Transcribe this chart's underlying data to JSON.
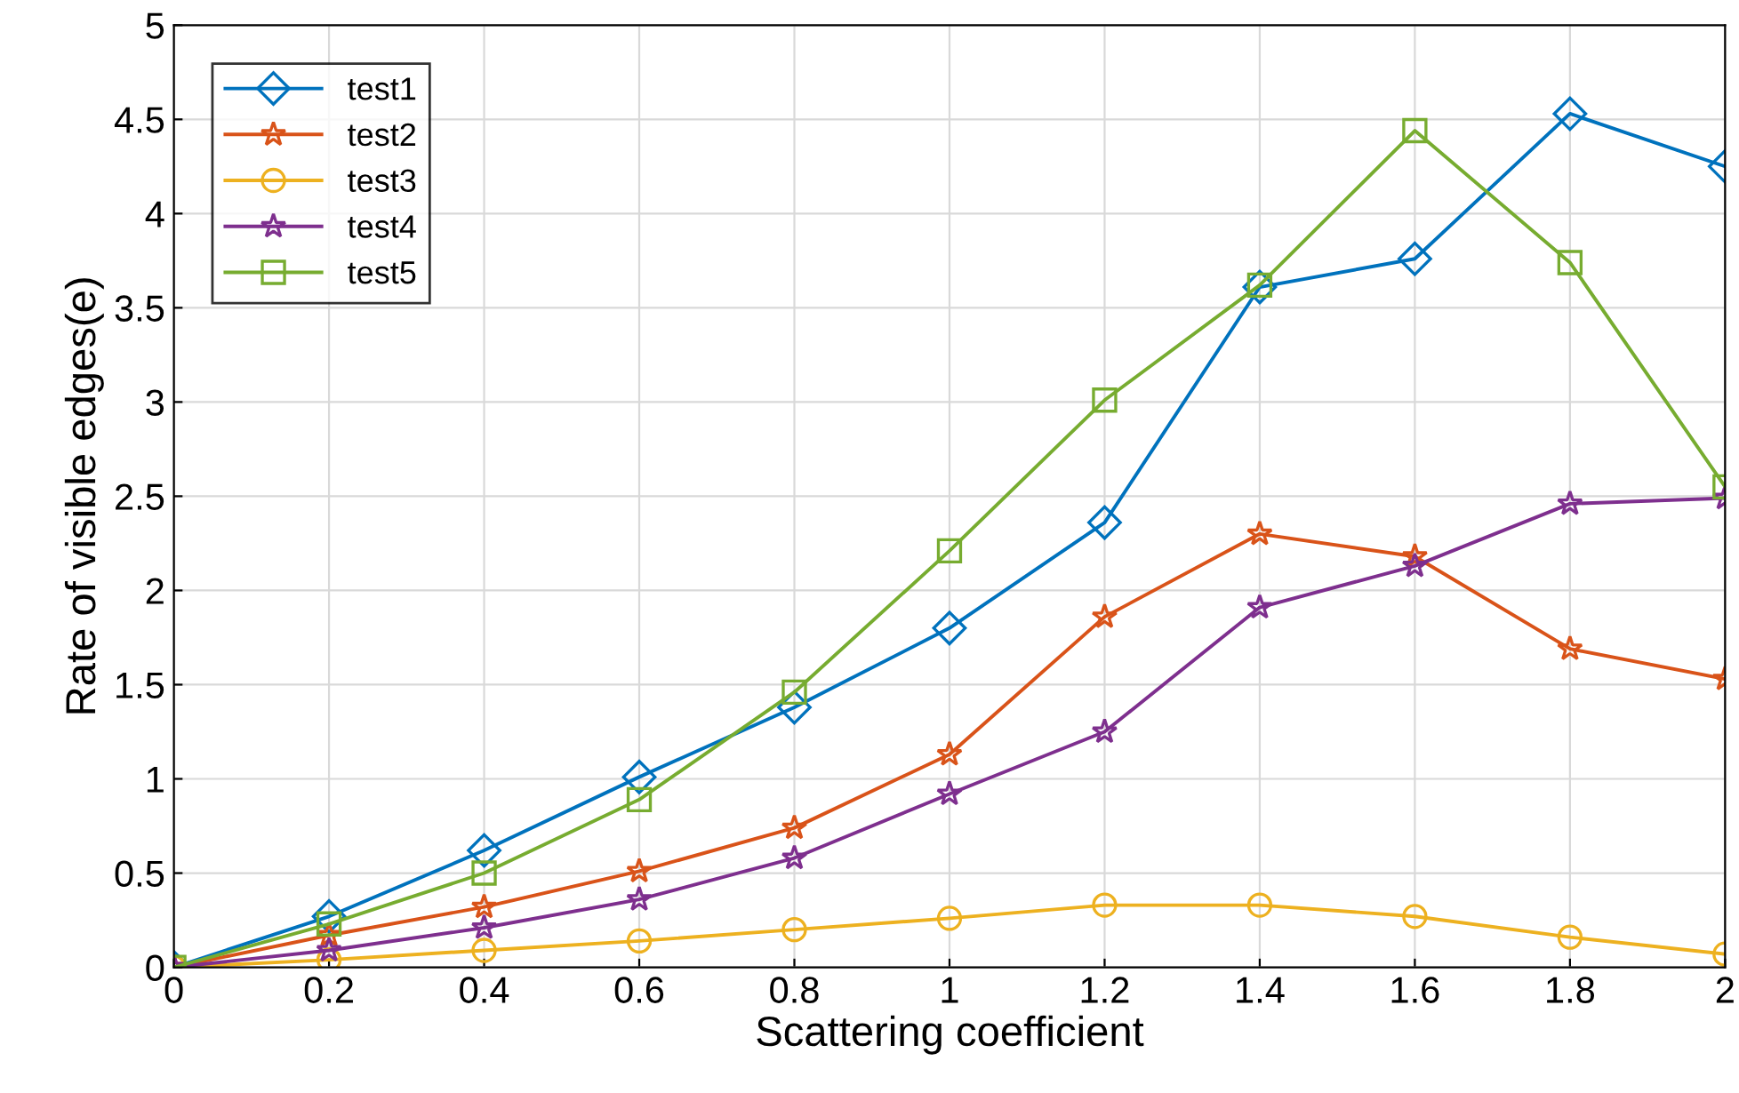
{
  "chart_data": {
    "type": "line",
    "xlabel": "Scattering coefficient",
    "ylabel": "Rate of visible edges(e)",
    "x": [
      0,
      0.2,
      0.4,
      0.6,
      0.8,
      1,
      1.2,
      1.4,
      1.6,
      1.8,
      2
    ],
    "xlim": [
      0,
      2
    ],
    "xticks": [
      0,
      0.2,
      0.4,
      0.6,
      0.8,
      1,
      1.2,
      1.4,
      1.6,
      1.8,
      2
    ],
    "ylim": [
      0,
      5
    ],
    "yticks": [
      0,
      0.5,
      1,
      1.5,
      2,
      2.5,
      3,
      3.5,
      4,
      4.5,
      5
    ],
    "grid": true,
    "legend": "top left",
    "line_style": "solid",
    "series": [
      {
        "name": "test1",
        "color": "#0072bd",
        "marker": "diamond",
        "values": [
          0,
          0.27,
          0.62,
          1.01,
          1.38,
          1.8,
          2.36,
          3.61,
          3.76,
          4.53,
          4.25
        ]
      },
      {
        "name": "test2",
        "color": "#d95319",
        "marker": "star",
        "values": [
          0,
          0.17,
          0.32,
          0.51,
          0.74,
          1.13,
          1.86,
          2.3,
          2.18,
          1.69,
          1.53
        ]
      },
      {
        "name": "test3",
        "color": "#edb120",
        "marker": "circle",
        "values": [
          0,
          0.04,
          0.09,
          0.14,
          0.2,
          0.26,
          0.33,
          0.33,
          0.27,
          0.16,
          0.07
        ]
      },
      {
        "name": "test4",
        "color": "#7e2f8e",
        "marker": "star",
        "values": [
          0,
          0.09,
          0.21,
          0.36,
          0.58,
          0.92,
          1.25,
          1.91,
          2.13,
          2.46,
          2.49
        ]
      },
      {
        "name": "test5",
        "color": "#77ac30",
        "marker": "square",
        "values": [
          0,
          0.23,
          0.5,
          0.89,
          1.46,
          2.21,
          3.01,
          3.62,
          4.44,
          3.74,
          2.55
        ]
      }
    ]
  }
}
